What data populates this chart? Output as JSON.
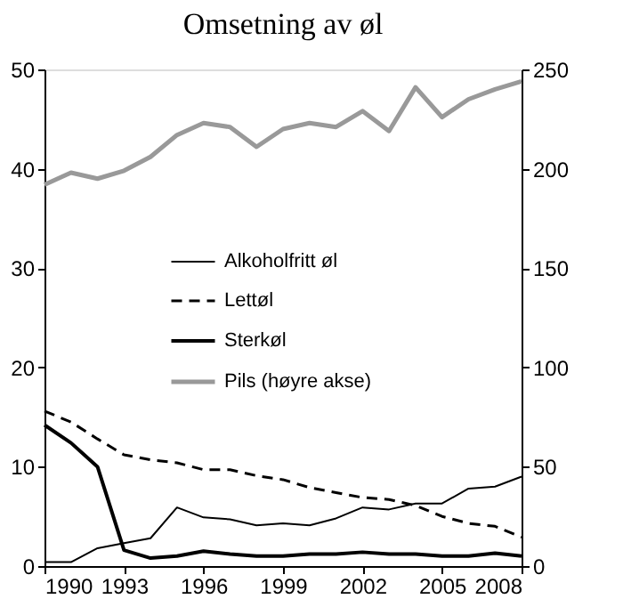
{
  "chart_data": {
    "type": "line",
    "title": "Omsetning av øl",
    "x": [
      1990,
      1991,
      1992,
      1993,
      1994,
      1995,
      1996,
      1997,
      1998,
      1999,
      2000,
      2001,
      2002,
      2003,
      2004,
      2005,
      2006,
      2007,
      2008
    ],
    "xlim": [
      1990,
      2008
    ],
    "xticks": [
      1990,
      1993,
      1996,
      1999,
      2002,
      2005,
      2008
    ],
    "ylim": [
      0,
      50
    ],
    "yticks": [
      0,
      10,
      20,
      30,
      40,
      50
    ],
    "y2lim": [
      0,
      250
    ],
    "y2ticks": [
      0,
      50,
      100,
      150,
      200,
      250
    ],
    "grid": false,
    "legend": "left",
    "marker": "none",
    "series": [
      {
        "name": "Alkoholfritt øl",
        "color": "#000000",
        "line_style": "solid",
        "values": [
          0.4,
          0.4,
          1.8,
          2.3,
          2.8,
          5.9,
          4.9,
          4.7,
          4.1,
          4.3,
          4.1,
          4.8,
          5.9,
          5.7,
          6.3,
          6.3,
          7.8,
          8.0,
          9.0
        ]
      },
      {
        "name": "Lettøl",
        "color": "#000000",
        "line_style": "dashed",
        "values": [
          15.6,
          14.5,
          12.8,
          11.2,
          10.7,
          10.4,
          9.7,
          9.7,
          9.1,
          8.7,
          7.9,
          7.4,
          6.9,
          6.7,
          6.1,
          5.0,
          4.3,
          4.0,
          2.9
        ]
      },
      {
        "name": "Sterkøl",
        "color": "#000000",
        "line_style": "solid",
        "values": [
          14.2,
          12.4,
          10.0,
          1.6,
          0.8,
          1.0,
          1.5,
          1.2,
          1.0,
          1.0,
          1.2,
          1.2,
          1.4,
          1.2,
          1.2,
          1.0,
          1.0,
          1.3,
          1.0
        ]
      },
      {
        "name": "Pils (høyre akse)",
        "color": "#999999",
        "line_style": "solid",
        "axis": "y2",
        "values": [
          192,
          198,
          195,
          199,
          206,
          217,
          223,
          221,
          211,
          220,
          223,
          221,
          229,
          219,
          241,
          226,
          235,
          240,
          244
        ]
      }
    ]
  }
}
